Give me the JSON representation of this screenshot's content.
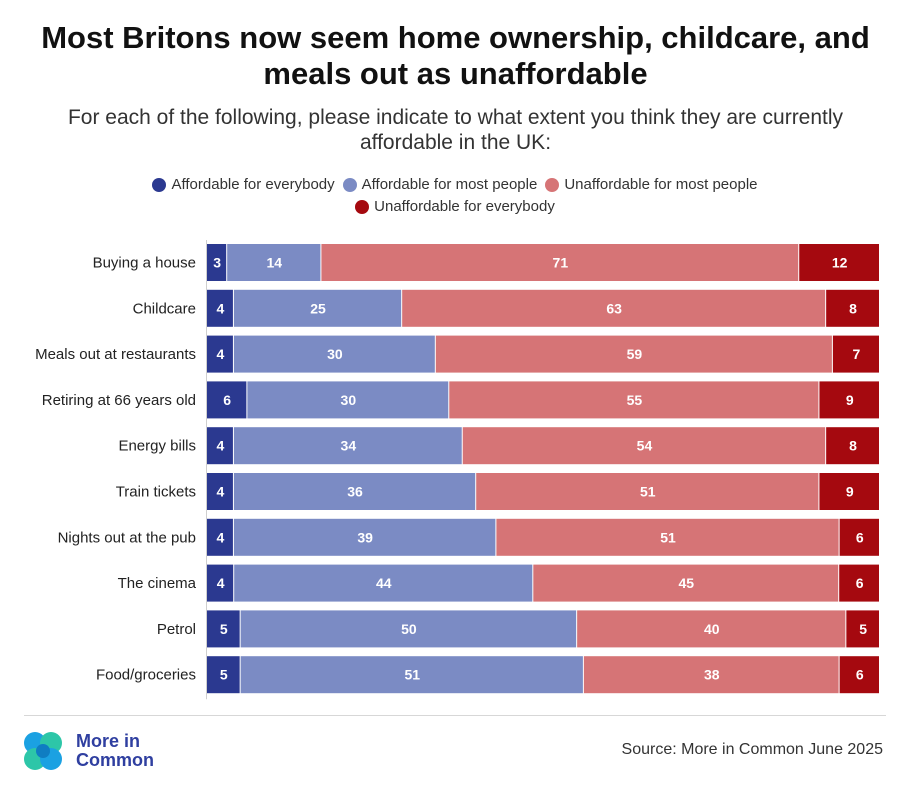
{
  "header": {
    "title_line1": "Most Britons now seem home ownership, childcare, and",
    "title_line2": "meals out as unaffordable",
    "subtitle_line1": "For each of the following, please indicate to what extent you think they are currently",
    "subtitle_line2": "affordable in the UK:"
  },
  "colors": {
    "affordable_everybody": "#2b3990",
    "affordable_most": "#7b8bc4",
    "unaffordable_most": "#d67476",
    "unaffordable_everybody": "#a5090f"
  },
  "chart_data": {
    "type": "bar",
    "orientation": "horizontal",
    "stacked": true,
    "legend_position": "top",
    "categories": [
      "Buying a house",
      "Childcare",
      "Meals out at restaurants",
      "Retiring at 66 years old",
      "Energy bills",
      "Train tickets",
      "Nights out at the pub",
      "The cinema",
      "Petrol",
      "Food/groceries"
    ],
    "series": [
      {
        "name": "Affordable for everybody",
        "values": [
          3,
          4,
          4,
          6,
          4,
          4,
          4,
          4,
          5,
          5
        ]
      },
      {
        "name": "Affordable for most people",
        "values": [
          14,
          25,
          30,
          30,
          34,
          36,
          39,
          44,
          50,
          51
        ]
      },
      {
        "name": "Unaffordable for most people",
        "values": [
          71,
          63,
          59,
          55,
          54,
          51,
          51,
          45,
          40,
          38
        ]
      },
      {
        "name": "Unaffordable for everybody",
        "values": [
          12,
          8,
          7,
          9,
          8,
          9,
          6,
          6,
          5,
          6
        ]
      }
    ]
  },
  "footer": {
    "logo_line1": "More in",
    "logo_line2": "Common",
    "source": "Source: More in Common June 2025"
  }
}
